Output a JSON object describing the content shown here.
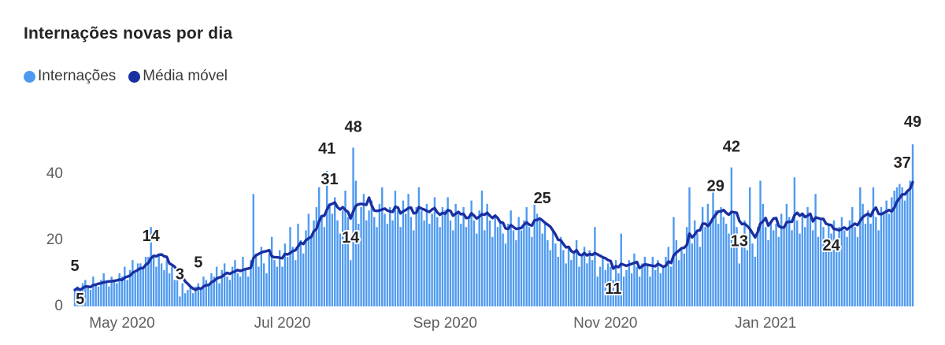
{
  "title": "Internações novas por dia",
  "legend": [
    {
      "label": "Internações",
      "color": "#4F9AF0"
    },
    {
      "label": "Média móvel",
      "color": "#1A2FA0"
    }
  ],
  "colors": {
    "bar": "#4F9AF0",
    "line": "#1A2FA0",
    "title_text": "#252423",
    "axis_text": "#605E5C",
    "data_label_text": "#252423",
    "background": "#ffffff"
  },
  "chart_data": {
    "type": "bar",
    "title": "Internações novas por dia",
    "xlabel": "",
    "ylabel": "",
    "ylim": [
      0,
      52
    ],
    "grid": false,
    "legend_position": "top-left",
    "y_ticks": [
      0,
      20,
      40
    ],
    "x_ticks": [
      {
        "label": "May 2020",
        "index": 18
      },
      {
        "label": "Jul 2020",
        "index": 79
      },
      {
        "label": "Sep 2020",
        "index": 141
      },
      {
        "label": "Nov 2020",
        "index": 202
      },
      {
        "label": "Jan 2021",
        "index": 263
      }
    ],
    "series": [
      {
        "name": "Internações",
        "type": "bar",
        "color": "#4F9AF0",
        "values": [
          5,
          6,
          4,
          7,
          8,
          6,
          5,
          9,
          7,
          6,
          8,
          10,
          7,
          6,
          9,
          8,
          7,
          10,
          9,
          12,
          8,
          11,
          14,
          10,
          13,
          13,
          12,
          15,
          15,
          24,
          15,
          12,
          16,
          13,
          11,
          14,
          10,
          12,
          8,
          9,
          3,
          7,
          4,
          5,
          6,
          4,
          6,
          7,
          5,
          9,
          8,
          6,
          10,
          9,
          12,
          7,
          11,
          13,
          9,
          8,
          12,
          14,
          10,
          9,
          15,
          11,
          9,
          14,
          34,
          16,
          12,
          18,
          13,
          10,
          16,
          21,
          14,
          12,
          17,
          12,
          19,
          15,
          24,
          18,
          14,
          25,
          20,
          16,
          23,
          28,
          21,
          26,
          30,
          36,
          27,
          24,
          41,
          31,
          28,
          33,
          26,
          22,
          29,
          35,
          27,
          14,
          48,
          38,
          25,
          30,
          34,
          26,
          29,
          32,
          27,
          24,
          31,
          36,
          28,
          25,
          30,
          26,
          35,
          29,
          24,
          32,
          28,
          34,
          27,
          23,
          30,
          36,
          29,
          26,
          31,
          25,
          28,
          33,
          27,
          24,
          30,
          29,
          33,
          26,
          23,
          31,
          28,
          25,
          30,
          24,
          27,
          32,
          26,
          22,
          29,
          35,
          23,
          31,
          26,
          21,
          27,
          24,
          26,
          22,
          19,
          25,
          29,
          23,
          20,
          27,
          23,
          26,
          30,
          24,
          21,
          31,
          28,
          26,
          22,
          25,
          20,
          17,
          23,
          19,
          15,
          21,
          17,
          13,
          18,
          14,
          16,
          20,
          12,
          15,
          18,
          13,
          17,
          14,
          24,
          9,
          12,
          15,
          11,
          13,
          12,
          8,
          14,
          10,
          22,
          9,
          11,
          14,
          10,
          16,
          12,
          9,
          13,
          15,
          13,
          9,
          15,
          11,
          14,
          10,
          12,
          15,
          18,
          12,
          27,
          20,
          14,
          17,
          16,
          24,
          36,
          19,
          26,
          22,
          18,
          30,
          24,
          31,
          26,
          36,
          29,
          25,
          30,
          27,
          25,
          22,
          42,
          28,
          24,
          13,
          20,
          26,
          17,
          36,
          19,
          15,
          24,
          38,
          31,
          24,
          20,
          26,
          23,
          25,
          21,
          28,
          24,
          31,
          27,
          23,
          39,
          26,
          22,
          28,
          24,
          30,
          27,
          23,
          34,
          21,
          26,
          24,
          20,
          25,
          22,
          26,
          20,
          24,
          27,
          23,
          21,
          26,
          30,
          24,
          21,
          36,
          31,
          25,
          29,
          25,
          36,
          27,
          23,
          30,
          28,
          32,
          28,
          33,
          35,
          36,
          37,
          36,
          32,
          35,
          38,
          49
        ]
      },
      {
        "name": "Média móvel",
        "type": "line",
        "color": "#1A2FA0",
        "derived_from": "Internações",
        "window_days": 7
      }
    ],
    "annotations": [
      {
        "index": 0,
        "series": "Internações",
        "text": "5",
        "position": "above",
        "dy": -14
      },
      {
        "index": 2,
        "series": "Média móvel",
        "text": "5",
        "position": "below",
        "dy": -8
      },
      {
        "index": 29,
        "series": "Média móvel",
        "text": "14",
        "position": "above",
        "dy": -8
      },
      {
        "index": 40,
        "series": "Internações",
        "text": "3",
        "position": "above",
        "dy": -12
      },
      {
        "index": 47,
        "series": "Média móvel",
        "text": "5",
        "position": "above",
        "dy": -12
      },
      {
        "index": 96,
        "series": "Internações",
        "text": "41",
        "position": "above",
        "dy": -12
      },
      {
        "index": 97,
        "series": "Média móvel",
        "text": "31",
        "position": "above",
        "dy": -12
      },
      {
        "index": 105,
        "series": "Internações",
        "text": "14",
        "position": "above",
        "dy": -12
      },
      {
        "index": 106,
        "series": "Internações",
        "text": "48",
        "position": "above",
        "dy": -10
      },
      {
        "index": 178,
        "series": "Média móvel",
        "text": "25",
        "position": "above",
        "dy": -8
      },
      {
        "index": 205,
        "series": "Média móvel",
        "text": "11",
        "position": "below",
        "dy": 6
      },
      {
        "index": 244,
        "series": "Média móvel",
        "text": "29",
        "position": "above",
        "dy": -16
      },
      {
        "index": 250,
        "series": "Internações",
        "text": "42",
        "position": "above",
        "dy": -10
      },
      {
        "index": 253,
        "series": "Internações",
        "text": "13",
        "position": "above",
        "dy": -12
      },
      {
        "index": 288,
        "series": "Média móvel",
        "text": "24",
        "position": "below",
        "dy": 6
      },
      {
        "index": 315,
        "series": "Média móvel",
        "text": "37",
        "position": "above",
        "dy": -20
      },
      {
        "index": 319,
        "series": "Internações",
        "text": "49",
        "position": "above",
        "dy": -12
      }
    ]
  }
}
